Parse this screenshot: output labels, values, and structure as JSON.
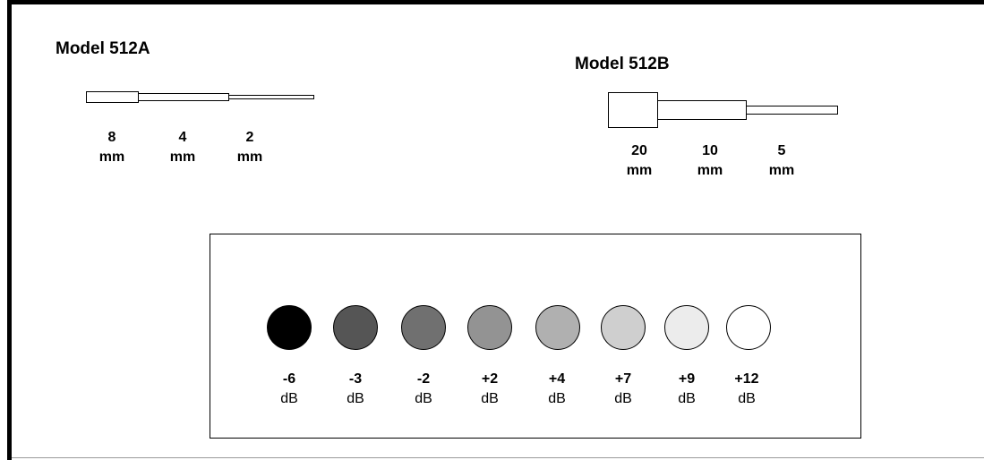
{
  "model_a": {
    "title": "Model 512A",
    "sections": [
      {
        "value": "8",
        "unit": "mm"
      },
      {
        "value": "4",
        "unit": "mm"
      },
      {
        "value": "2",
        "unit": "mm"
      }
    ]
  },
  "model_b": {
    "title": "Model 512B",
    "sections": [
      {
        "value": "20",
        "unit": "mm"
      },
      {
        "value": "10",
        "unit": "mm"
      },
      {
        "value": "5",
        "unit": "mm"
      }
    ]
  },
  "levels": [
    {
      "value": "-6",
      "unit": "dB",
      "color": "#000000"
    },
    {
      "value": "-3",
      "unit": "dB",
      "color": "#555555"
    },
    {
      "value": "-2",
      "unit": "dB",
      "color": "#707070"
    },
    {
      "value": "+2",
      "unit": "dB",
      "color": "#939393"
    },
    {
      "value": "+4",
      "unit": "dB",
      "color": "#b0b0b0"
    },
    {
      "value": "+7",
      "unit": "dB",
      "color": "#cfcfcf"
    },
    {
      "value": "+9",
      "unit": "dB",
      "color": "#ececec"
    },
    {
      "value": "+12",
      "unit": "dB",
      "color": "#ffffff"
    }
  ]
}
